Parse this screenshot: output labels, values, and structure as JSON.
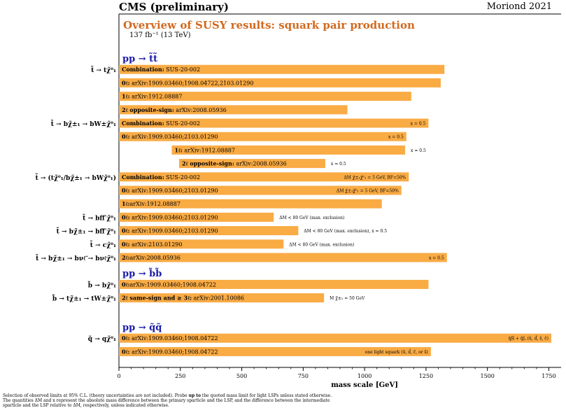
{
  "header": {
    "experiment": "CMS (preliminary)",
    "conference": "Moriond 2021",
    "title": "Overview of SUSY results: squark pair production",
    "luminosity": "137 fb⁻¹ (13 TeV)"
  },
  "footnote": {
    "line1_a": "Selection of observed limits at 95% C.L. (theory uncertainties are not included). Probe ",
    "line1_b": "up to",
    "line1_c": " the quoted mass limit for light LSPs unless stated otherwise.",
    "line2": "The quantities ΔM and x represent the absolute mass difference between the primary sparticle and the LSP, and the difference between the intermediate",
    "line3": "sparticle and the LSP relative to ΔM, respectively, unless indicated otherwise."
  },
  "colors": {
    "bar": "#f9ab44",
    "section": "#1a1aa8",
    "frame": "#000000"
  },
  "chart_data": {
    "type": "bar",
    "orientation": "horizontal",
    "xlabel": "mass scale [GeV]",
    "xlim": [
      0,
      1800
    ],
    "xticks": [
      0,
      250,
      500,
      750,
      1000,
      1250,
      1500,
      1750
    ],
    "sections": [
      {
        "label": "pp → t̃t̃",
        "row": 0
      },
      {
        "label": "pp → b̃b̃",
        "row": 16
      },
      {
        "label": "pp → q̃q̃",
        "row": 20
      }
    ],
    "process_labels": [
      {
        "text": "t̃ → tχ̃⁰₁",
        "row": 1
      },
      {
        "text": "t̃ → bχ̃±₁ → bW±χ̃⁰₁",
        "row": 5
      },
      {
        "text": "t̃ → (tχ̃⁰₁/bχ̃±₁ → bWχ̃⁰₁)",
        "row": 9
      },
      {
        "text": "t̃ → bff′χ̃⁰₁",
        "row": 12
      },
      {
        "text": "t̃ → bχ̃±₁ → bff̃′χ̃⁰₁",
        "row": 13
      },
      {
        "text": "t̃ → cχ̃⁰₁",
        "row": 14
      },
      {
        "text": "t̃ → bχ̃±₁ → bνℓ̃ → bνℓχ̃⁰₁",
        "row": 15
      },
      {
        "text": "b̃ → bχ̃⁰₁",
        "row": 17
      },
      {
        "text": "b̃ → tχ̃±₁ → tW±χ̃⁰₁",
        "row": 18
      },
      {
        "text": "q̃ → qχ̃⁰₁",
        "row": 21
      }
    ],
    "bars": [
      {
        "row": 1,
        "start": 0,
        "end": 1325,
        "label_bold": "Combination:",
        "label": " SUS-20-002",
        "note": "",
        "note_pos": "after"
      },
      {
        "row": 2,
        "start": 0,
        "end": 1310,
        "label_bold": "0ℓ:",
        "label": " arXiv:1909.03460;1908.04722,2103.01290",
        "note": "",
        "note_pos": "after"
      },
      {
        "row": 3,
        "start": 0,
        "end": 1190,
        "label_bold": "1ℓ:",
        "label": " arXiv:1912.08887",
        "note": "",
        "note_pos": "after"
      },
      {
        "row": 4,
        "start": 0,
        "end": 930,
        "label_bold": "2ℓ opposite-sign:",
        "label": " arXiv:2008.05936",
        "note": "",
        "note_pos": "after"
      },
      {
        "row": 5,
        "start": 0,
        "end": 1260,
        "label_bold": "Combination:",
        "label": " SUS-20-002",
        "note": "x = 0.5",
        "note_pos": "inside"
      },
      {
        "row": 6,
        "start": 0,
        "end": 1170,
        "label_bold": "0ℓ:",
        "label": " arXiv:1909.03460;2103.01290",
        "note": "x = 0.5",
        "note_pos": "inside"
      },
      {
        "row": 7,
        "start": 215,
        "end": 1165,
        "label_bold": "1ℓ:",
        "label": " arXiv:1912.08887",
        "note": "x = 0.5",
        "note_pos": "after"
      },
      {
        "row": 8,
        "start": 245,
        "end": 840,
        "label_bold": "2ℓ opposite-sign:",
        "label": " arXiv:2008.05936",
        "note": "x = 0.5",
        "note_pos": "after"
      },
      {
        "row": 9,
        "start": 0,
        "end": 1180,
        "label_bold": "Combination:",
        "label": " SUS-20-002",
        "note": "ΔM χ̃±₁χ̃⁰₁ = 5 GeV, BF=50%",
        "note_pos": "inside"
      },
      {
        "row": 10,
        "start": 0,
        "end": 1150,
        "label_bold": "0ℓ:",
        "label": " arXiv:1909.03460;2103.01290",
        "note": "ΔM χ̃±₁χ̃⁰₁ = 5 GeV, BF=50%",
        "note_pos": "inside"
      },
      {
        "row": 11,
        "start": 0,
        "end": 1070,
        "label_bold": "1ℓ:",
        "label": "arXiv:1912.08887",
        "note": "",
        "note_pos": "after"
      },
      {
        "row": 12,
        "start": 0,
        "end": 630,
        "label_bold": "0ℓ:",
        "label": " arXiv:1909.03460;2103.01290",
        "note": "ΔM < 80 GeV (max. exclusion)",
        "note_pos": "after"
      },
      {
        "row": 13,
        "start": 0,
        "end": 730,
        "label_bold": "0ℓ:",
        "label": " arXiv:1909.03460;2103.01290",
        "note": "ΔM < 80 GeV (max. exclusion), x = 0.5",
        "note_pos": "after"
      },
      {
        "row": 14,
        "start": 0,
        "end": 670,
        "label_bold": "0ℓ:",
        "label": " arXiv:2103.01290",
        "note": "ΔM < 80 GeV (max. exclusion)",
        "note_pos": "after"
      },
      {
        "row": 15,
        "start": 0,
        "end": 1335,
        "label_bold": "2ℓ:",
        "label": "arXiv:2008.05936",
        "note": "x = 0.5",
        "note_pos": "inside"
      },
      {
        "row": 17,
        "start": 0,
        "end": 1260,
        "label_bold": "0ℓ:",
        "label": "arXiv:1909.03460;1908.04722",
        "note": "",
        "note_pos": "after"
      },
      {
        "row": 18,
        "start": 0,
        "end": 835,
        "label_bold": "2ℓ same-sign and ≥ 3ℓ:",
        "label": " arXiv:2001.10086",
        "note": "M χ̃±₁ = 50 GeV",
        "note_pos": "after"
      },
      {
        "row": 21,
        "start": 0,
        "end": 1760,
        "label_bold": "0ℓ:",
        "label": " arXiv:1909.03460;1908.04722",
        "note": "q̃R + q̃L (ũ, d̃, s̃, c̃)",
        "note_pos": "inside"
      },
      {
        "row": 22,
        "start": 0,
        "end": 1270,
        "label_bold": "0ℓ:",
        "label": " arXiv:1909.03460;1908.04722",
        "note": "one light squark (ũ, d̃, c̃, or s̃)",
        "note_pos": "inside"
      }
    ]
  }
}
